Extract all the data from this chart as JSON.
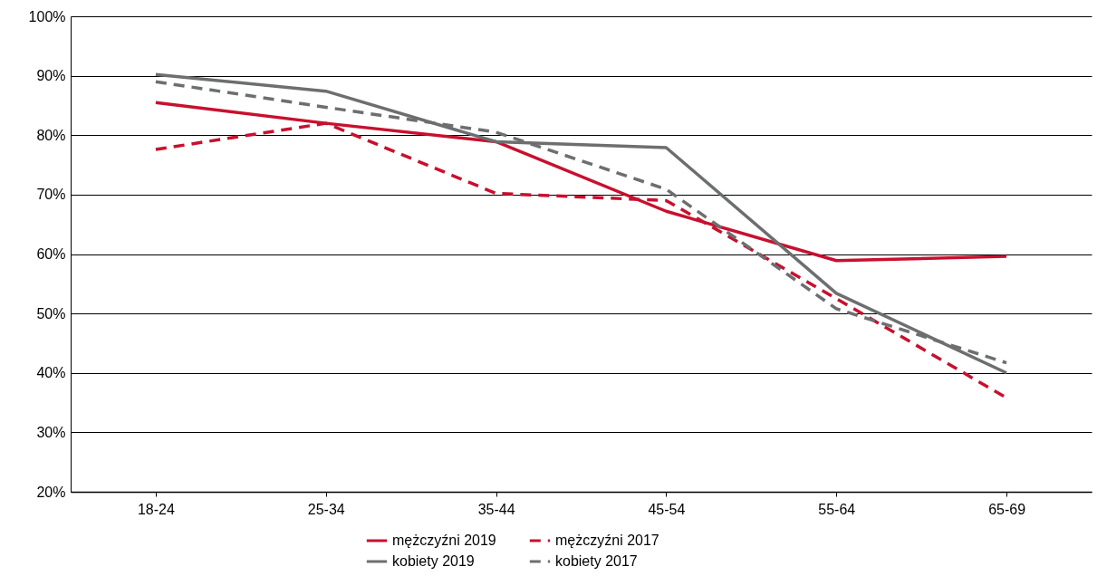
{
  "chart_data": {
    "type": "line",
    "categories": [
      "18-24",
      "25-34",
      "35-44",
      "45-54",
      "55-64",
      "65-69"
    ],
    "series": [
      {
        "name": "mężczyźni 2019",
        "color": "#c8102e",
        "line_style": "solid",
        "values": [
          85.5,
          82,
          78.9,
          67.2,
          58.9,
          59.6
        ]
      },
      {
        "name": "kobiety 2019",
        "color": "#6d6e70",
        "line_style": "solid",
        "values": [
          90.2,
          87.4,
          78.9,
          77.9,
          53.4,
          40
        ]
      },
      {
        "name": "mężczyźni 2017",
        "color": "#c8102e",
        "line_style": "dashed",
        "values": [
          77.6,
          82,
          70.2,
          69,
          52.5,
          35.8
        ]
      },
      {
        "name": "kobiety 2017",
        "color": "#6d6e70",
        "line_style": "dashed",
        "values": [
          89,
          84.7,
          80.5,
          70.9,
          50.8,
          41.7
        ]
      }
    ],
    "ylim": [
      20,
      100
    ],
    "yticks": [
      {
        "value": 20,
        "label": "20%"
      },
      {
        "value": 30,
        "label": "30%"
      },
      {
        "value": 40,
        "label": "40%"
      },
      {
        "value": 50,
        "label": "50%"
      },
      {
        "value": 60,
        "label": "60%"
      },
      {
        "value": 70,
        "label": "70%"
      },
      {
        "value": 80,
        "label": "80%"
      },
      {
        "value": 90,
        "label": "90%"
      },
      {
        "value": 100,
        "label": "100%"
      }
    ],
    "grid": "y",
    "legend": "bottom",
    "marker": "none"
  }
}
